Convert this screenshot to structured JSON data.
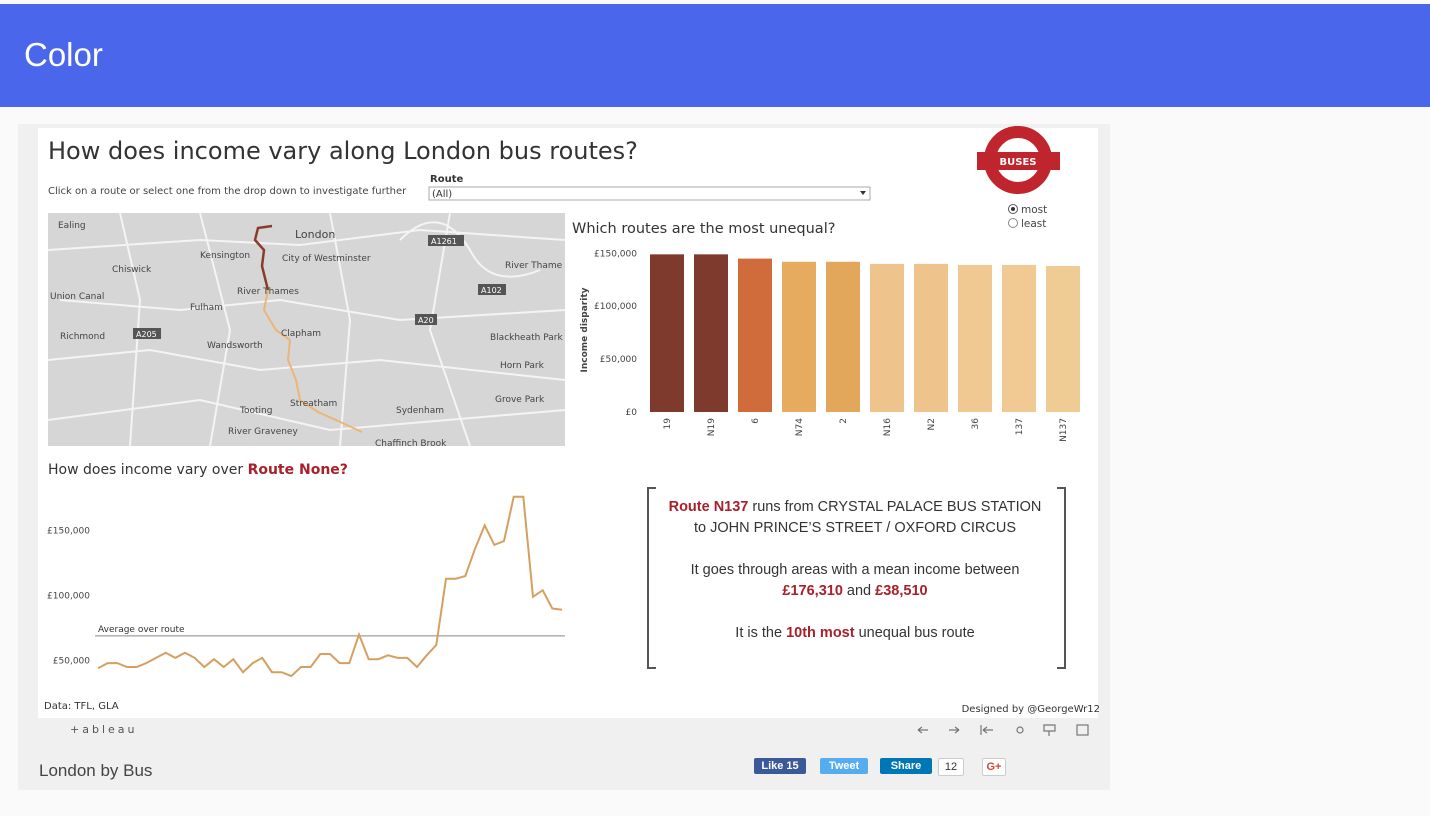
{
  "header": {
    "title": "Color"
  },
  "dashboard": {
    "title": "How does income vary along London bus routes?",
    "instruction": "Click on a route or select one from the drop down to investigate further",
    "filter": {
      "label": "Route",
      "value": "(All)"
    },
    "logo": "BUSES",
    "sort_options": [
      "most",
      "least"
    ],
    "map": {
      "labels": [
        "Ealing",
        "London",
        "Kensington",
        "City of Westminster",
        "Chiswick",
        "River Thames",
        "River Thame",
        "Union Canal",
        "Fulham",
        "Richmond",
        "A205",
        "Clapham",
        "Wandsworth",
        "Blackheath Park",
        "Horn Park",
        "Grove Park",
        "Tooting",
        "Streatham",
        "Sydenham",
        "River Graveney",
        "Chaffinch Brook",
        "A1261",
        "A102",
        "A20"
      ]
    },
    "bar_chart": {
      "type": "bar",
      "title": "Which routes are the most unequal?",
      "y_label": "Income disparity",
      "categories": [
        "19",
        "N19",
        "6",
        "N74",
        "2",
        "N16",
        "N2",
        "36",
        "137",
        "N137"
      ],
      "values": [
        149000,
        149000,
        145000,
        142000,
        142000,
        140000,
        140000,
        139000,
        139000,
        138000
      ],
      "colors": [
        "#7e3a2c",
        "#7e3a2c",
        "#d06c3c",
        "#e6ab5e",
        "#e3a75c",
        "#eec48c",
        "#eec48c",
        "#efc991",
        "#f0ca92",
        "#f0cc95"
      ],
      "ylim": [
        0,
        155000
      ],
      "yticks": [
        {
          "value": 0,
          "label": "£0"
        },
        {
          "value": 50000,
          "label": "£50,000"
        },
        {
          "value": 100000,
          "label": "£100,000"
        },
        {
          "value": 150000,
          "label": "£150,000"
        }
      ]
    },
    "line_chart": {
      "type": "line",
      "title_prefix": "How does income vary over",
      "title_route": "Route  None?",
      "color": "#d4a060",
      "values": [
        44000,
        48000,
        48000,
        45000,
        45000,
        48000,
        52000,
        56000,
        52000,
        56000,
        52000,
        45000,
        51000,
        45000,
        51000,
        41000,
        48000,
        52000,
        41000,
        41000,
        38000,
        45000,
        45000,
        55000,
        55000,
        48000,
        48000,
        70000,
        51000,
        51000,
        54000,
        52000,
        52000,
        45000,
        54000,
        62000,
        113000,
        113000,
        115000,
        136000,
        154000,
        139000,
        142000,
        176000,
        176000,
        99000,
        104000,
        90000,
        89000
      ],
      "ylim": [
        35000,
        182000
      ],
      "yticks": [
        {
          "value": 50000,
          "label": "£50,000"
        },
        {
          "value": 100000,
          "label": "£100,000"
        },
        {
          "value": 150000,
          "label": "£150,000"
        }
      ],
      "average": 69000,
      "average_label": "Average over route"
    },
    "summary": {
      "route": "Route N137",
      "from_text": "runs from CRYSTAL PALACE BUS STATION",
      "to_text": "to JOHN PRINCE’S STREET / OXFORD CIRCUS",
      "income_text": "It goes through areas with a  mean income between",
      "income_max": "£176,310",
      "and": "and",
      "income_min": "£38,510",
      "rank_prefix": "It is the",
      "rank": "10th most",
      "rank_suffix": "unequal bus route"
    },
    "source": "Data: TFL, GLA",
    "credit": "Designed by @GeorgeWr12"
  },
  "toolbar": {
    "logo": "+ableau"
  },
  "footer": {
    "title": "London by Bus",
    "buttons": [
      "Like 15",
      "Tweet",
      "Share",
      "12",
      "G+"
    ]
  }
}
